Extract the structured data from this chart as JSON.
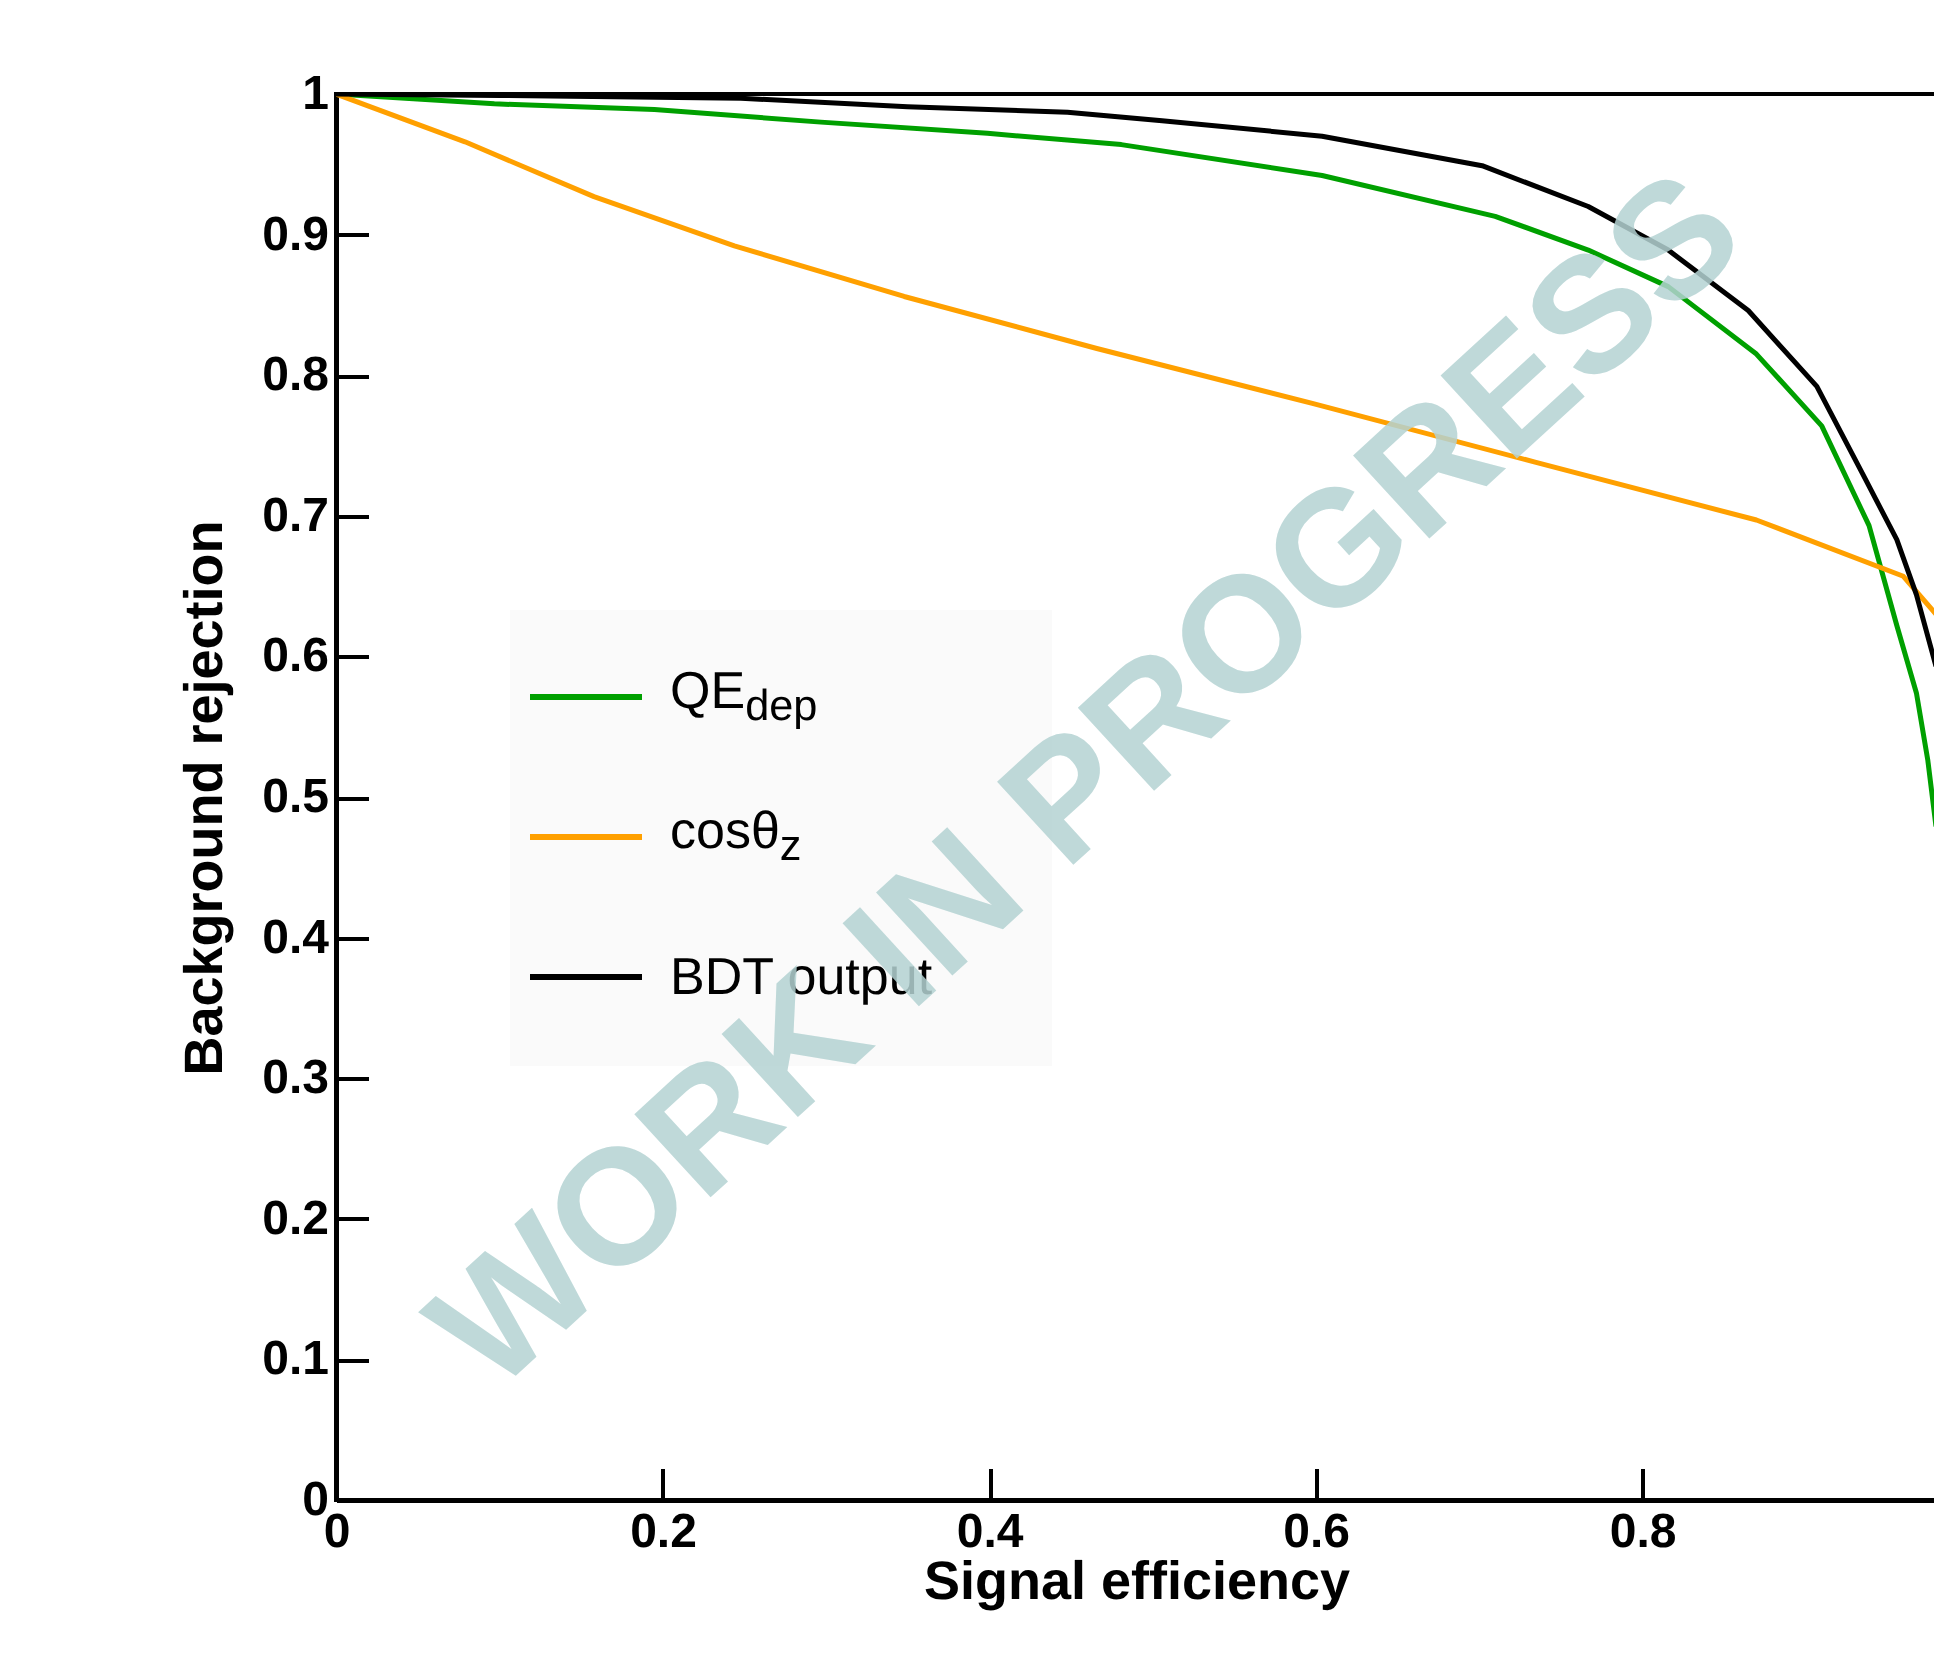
{
  "chart_data": {
    "type": "line",
    "xlabel": "Signal efficiency",
    "ylabel": "Background rejection",
    "annotations": [
      "WORK IN PROGRESS"
    ],
    "xlim": [
      0,
      0.98
    ],
    "ylim": [
      0,
      1
    ],
    "xticks": [
      0,
      0.2,
      0.4,
      0.6,
      0.8
    ],
    "yticks": [
      0,
      0.1,
      0.2,
      0.3,
      0.4,
      0.5,
      0.6,
      0.7,
      0.8,
      0.9,
      1
    ],
    "legend": "left",
    "grid": false,
    "marker": "none",
    "line_style": "solid",
    "series": [
      {
        "name": "QE$_{dep}$",
        "color": "#00a000",
        "x": [
          0,
          0.097,
          0.195,
          0.297,
          0.399,
          0.481,
          0.604,
          0.71,
          0.767,
          0.816,
          0.87,
          0.91,
          0.939,
          0.956,
          0.968,
          0.975,
          0.98
        ],
        "values": [
          1,
          0.993,
          0.989,
          0.98,
          0.972,
          0.964,
          0.942,
          0.913,
          0.889,
          0.863,
          0.815,
          0.764,
          0.693,
          0.622,
          0.574,
          0.526,
          0.479
        ]
      },
      {
        "name": "cosθ$_{z}$",
        "color": "#ffa000",
        "x": [
          0,
          0.079,
          0.158,
          0.244,
          0.348,
          0.466,
          0.598,
          0.735,
          0.87,
          0.96,
          0.98
        ],
        "values": [
          1,
          0.966,
          0.927,
          0.892,
          0.856,
          0.819,
          0.78,
          0.738,
          0.697,
          0.657,
          0.63
        ]
      },
      {
        "name": "BDT output",
        "color": "#000000",
        "x": [
          0,
          0.1,
          0.248,
          0.35,
          0.448,
          0.506,
          0.604,
          0.702,
          0.767,
          0.816,
          0.865,
          0.907,
          0.935,
          0.956,
          0.968,
          0.98
        ],
        "values": [
          1,
          0.999,
          0.997,
          0.991,
          0.987,
          0.981,
          0.97,
          0.949,
          0.92,
          0.889,
          0.846,
          0.792,
          0.73,
          0.683,
          0.644,
          0.593
        ]
      }
    ]
  }
}
